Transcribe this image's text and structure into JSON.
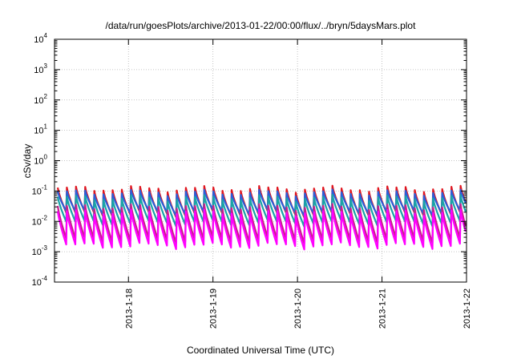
{
  "chart_data": {
    "type": "line",
    "title": "/data/run/goesPlots/archive/2013-01-22/00:00/flux/../bryn/5daysMars.plot",
    "xlabel": "Coordinated Universal Time (UTC)",
    "ylabel": "cSv/day",
    "x_start": "2013-01-17 03:00",
    "x_end": "2013-01-22 00:00",
    "x_ticks": [
      "2013-1-18",
      "2013-1-19",
      "2013-1-20",
      "2013-1-21",
      "2013-1-22"
    ],
    "y_scale": "log",
    "ylim": [
      0.0001,
      10000
    ],
    "y_ticks": [
      {
        "base": "10",
        "exp": "4"
      },
      {
        "base": "10",
        "exp": "3"
      },
      {
        "base": "10",
        "exp": "2"
      },
      {
        "base": "10",
        "exp": "1"
      },
      {
        "base": "10",
        "exp": "0"
      },
      {
        "base": "10",
        "exp": "-1"
      },
      {
        "base": "10",
        "exp": "-2"
      },
      {
        "base": "10",
        "exp": "-3"
      },
      {
        "base": "10",
        "exp": "-4"
      }
    ],
    "grid": true,
    "period_hours": 2.6,
    "series": [
      {
        "color": "#e0151e",
        "peak": 0.12,
        "trough": 0.018
      },
      {
        "color": "#2b5fd9",
        "peak": 0.09,
        "trough": 0.02
      },
      {
        "color": "#1aa3a6",
        "peak": 0.06,
        "trough": 0.009
      },
      {
        "color": "#c81e8c",
        "peak": 0.03,
        "trough": 0.0025
      },
      {
        "color": "#ff00ff",
        "peak": 0.02,
        "trough": 0.0016
      }
    ]
  }
}
